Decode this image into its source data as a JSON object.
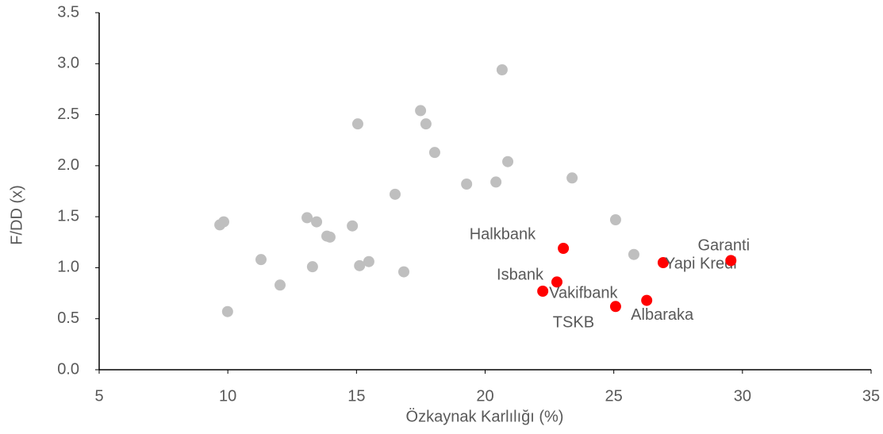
{
  "chart_data": {
    "type": "scatter",
    "x_label": "Özkaynak Karlılığı (%)",
    "y_label": "F/DD (x)",
    "xlim": [
      5,
      35
    ],
    "xticks": [
      5,
      10,
      15,
      20,
      25,
      30,
      35
    ],
    "ylim": [
      0,
      3.5
    ],
    "yticks": [
      {
        "value": 0,
        "label": "0.0"
      },
      {
        "value": 0.5,
        "label": "0.5"
      },
      {
        "value": 1,
        "label": "1.0"
      },
      {
        "value": 1.5,
        "label": "1.5"
      },
      {
        "value": 2,
        "label": "2.0"
      },
      {
        "value": 2.5,
        "label": "2.5"
      },
      {
        "value": 3,
        "label": "3.0"
      },
      {
        "value": 3.5,
        "label": "3.5"
      }
    ],
    "series": [
      {
        "color": "#bfbfbf",
        "x": [
          9.69,
          9.84,
          9.99,
          11.29,
          12.03,
          13.08,
          13.29,
          13.45,
          13.85,
          13.97,
          14.84,
          15.05,
          15.12,
          15.48,
          16.5,
          16.84,
          17.49,
          17.7,
          18.04,
          19.28,
          20.42,
          20.66,
          20.88,
          23.38,
          25.07,
          25.78
        ],
        "values": [
          1.42,
          1.45,
          0.57,
          1.08,
          0.83,
          1.49,
          1.01,
          1.45,
          1.31,
          1.3,
          1.41,
          2.41,
          1.02,
          1.06,
          1.72,
          0.96,
          2.54,
          2.41,
          2.13,
          1.82,
          1.84,
          2.94,
          2.04,
          1.88,
          1.47,
          1.13
        ]
      },
      {
        "color": "#ff0000",
        "x": [
          23.04,
          22.79,
          22.24,
          25.07,
          26.28,
          26.92,
          29.55
        ],
        "values": [
          1.19,
          0.86,
          0.77,
          0.62,
          0.68,
          1.05,
          1.07
        ],
        "labels": [
          "Halkbank",
          "Isbank",
          "Vakifbank",
          "TSKB",
          "Albaraka",
          "Yapi Kredi",
          "Garanti"
        ]
      }
    ]
  }
}
